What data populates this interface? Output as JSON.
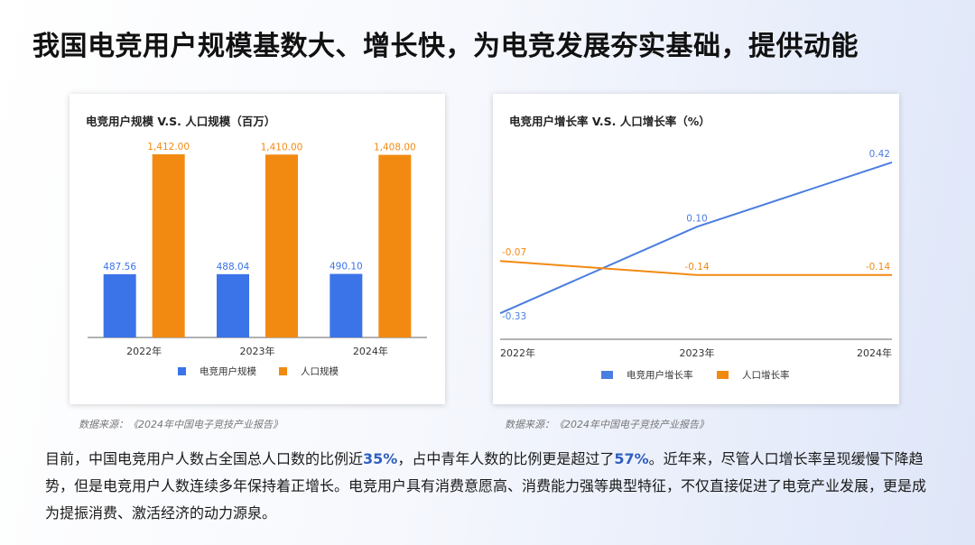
{
  "page": {
    "title": "我国电竞用户规模基数大、增长快，为电竞发展夯实基础，提供动能",
    "body": {
      "p1": "目前，中国电竞用户人数占全国总人口数的比例近",
      "h1": "35%",
      "p2": "，占中青年人数的比例更是超过了",
      "h2": "57%",
      "p3": "。近年来，尽管人口增长率呈现缓慢下降趋势，但是电竞用户人数连续多年保持着正增长。电竞用户具有消费意愿高、消费能力强等典型特征，不仅直接促进了电竞产业发展，更是成为提振消费、激活经济的动力源泉。"
    }
  },
  "chart_data": [
    {
      "type": "bar",
      "title": "电竞用户规模 V.S. 人口规模（百万）",
      "categories": [
        "2022年",
        "2023年",
        "2024年"
      ],
      "series": [
        {
          "name": "电竞用户规模",
          "color": "#3b73e8",
          "values": [
            487.56,
            488.04,
            490.1
          ],
          "labels": [
            "487.56",
            "488.04",
            "490.10"
          ]
        },
        {
          "name": "人口规模",
          "color": "#f28a12",
          "values": [
            1412.0,
            1410.0,
            1408.0
          ],
          "labels": [
            "1,412.00",
            "1,410.00",
            "1,408.00"
          ]
        }
      ],
      "ylim": [
        0,
        1600
      ],
      "grid": false,
      "legend": "bottom",
      "source": "数据来源：《2024年中国电子竞技产业报告》"
    },
    {
      "type": "line",
      "title": "电竞用户增长率 V.S. 人口增长率（%）",
      "categories": [
        "2022年",
        "2023年",
        "2024年"
      ],
      "series": [
        {
          "name": "电竞用户增长率",
          "color": "#4a7de0",
          "values": [
            -0.33,
            0.1,
            0.42
          ],
          "labels": [
            "-0.33",
            "0.10",
            "0.42"
          ]
        },
        {
          "name": "人口增长率",
          "color": "#f28a12",
          "values": [
            -0.07,
            -0.14,
            -0.14
          ],
          "labels": [
            "-0.07",
            "-0.14",
            "-0.14"
          ]
        }
      ],
      "ylim": [
        -0.45,
        0.5
      ],
      "grid": false,
      "legend": "bottom",
      "source": "数据来源：《2024年中国电子竞技产业报告》"
    }
  ]
}
